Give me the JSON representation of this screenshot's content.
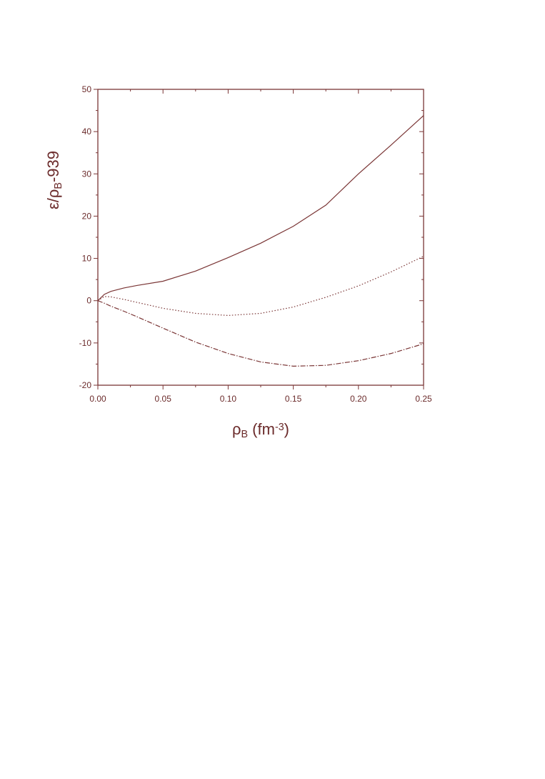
{
  "chart_data": {
    "type": "line",
    "xlabel_parts": [
      "ρ",
      "B",
      " (fm",
      "-3",
      ")"
    ],
    "ylabel_parts": [
      "ε/ρ",
      "B",
      "-939"
    ],
    "x": [
      0,
      0.005,
      0.01,
      0.02,
      0.03,
      0.05,
      0.075,
      0.1,
      0.125,
      0.15,
      0.175,
      0.2,
      0.225,
      0.25
    ],
    "series": [
      {
        "color": "#7a3535",
        "style": "solid",
        "values": [
          0,
          1.5,
          2.2,
          3.0,
          3.6,
          4.6,
          7.0,
          10.2,
          13.6,
          17.6,
          22.6,
          30.0,
          36.8,
          43.8
        ]
      },
      {
        "color": "#7a3535",
        "style": "dotted",
        "values": [
          0,
          1.0,
          0.9,
          0.3,
          -0.4,
          -1.8,
          -3.0,
          -3.5,
          -3.0,
          -1.5,
          0.8,
          3.5,
          6.8,
          10.5
        ]
      },
      {
        "color": "#7a3535",
        "style": "dashdot",
        "values": [
          0,
          -0.6,
          -1.3,
          -2.5,
          -3.8,
          -6.5,
          -9.8,
          -12.5,
          -14.5,
          -15.5,
          -15.3,
          -14.2,
          -12.5,
          -10.2
        ]
      }
    ],
    "xlim": [
      0,
      0.25
    ],
    "ylim": [
      -20,
      50
    ],
    "xticks": [
      {
        "value": 0,
        "label": "0.00"
      },
      {
        "value": 0.05,
        "label": "0.05"
      },
      {
        "value": 0.1,
        "label": "0.10"
      },
      {
        "value": 0.15,
        "label": "0.15"
      },
      {
        "value": 0.2,
        "label": "0.20"
      },
      {
        "value": 0.25,
        "label": "0.25"
      }
    ],
    "yticks": [
      -20,
      -10,
      0,
      10,
      20,
      30,
      40,
      50
    ],
    "grid": false
  }
}
